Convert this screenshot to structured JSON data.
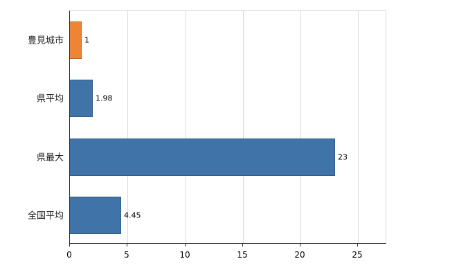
{
  "chart_data": {
    "type": "bar",
    "orientation": "horizontal",
    "title": "",
    "categories": [
      "豊見城市",
      "県平均",
      "県最大",
      "全国平均"
    ],
    "values": [
      1,
      1.98,
      23,
      4.45
    ],
    "value_labels": [
      "1",
      "1.98",
      "23",
      "4.45"
    ],
    "bar_fill_colors": [
      "#ee8534",
      "#4073a8",
      "#4073a8",
      "#4073a8"
    ],
    "bar_border_colors": [
      "#c2671d",
      "#2f5a85",
      "#2f5a85",
      "#2f5a85"
    ],
    "xticks": [
      0,
      5,
      10,
      15,
      20,
      25
    ],
    "xtick_labels": [
      "0",
      "5",
      "10",
      "15",
      "20",
      "25"
    ],
    "xlim": [
      0,
      27.5
    ],
    "grid": true,
    "legend": "none",
    "colors": {
      "grid": "#d9d9d9",
      "axis": "#2b2b2b",
      "text": "#000000",
      "background": "#ffffff"
    }
  }
}
